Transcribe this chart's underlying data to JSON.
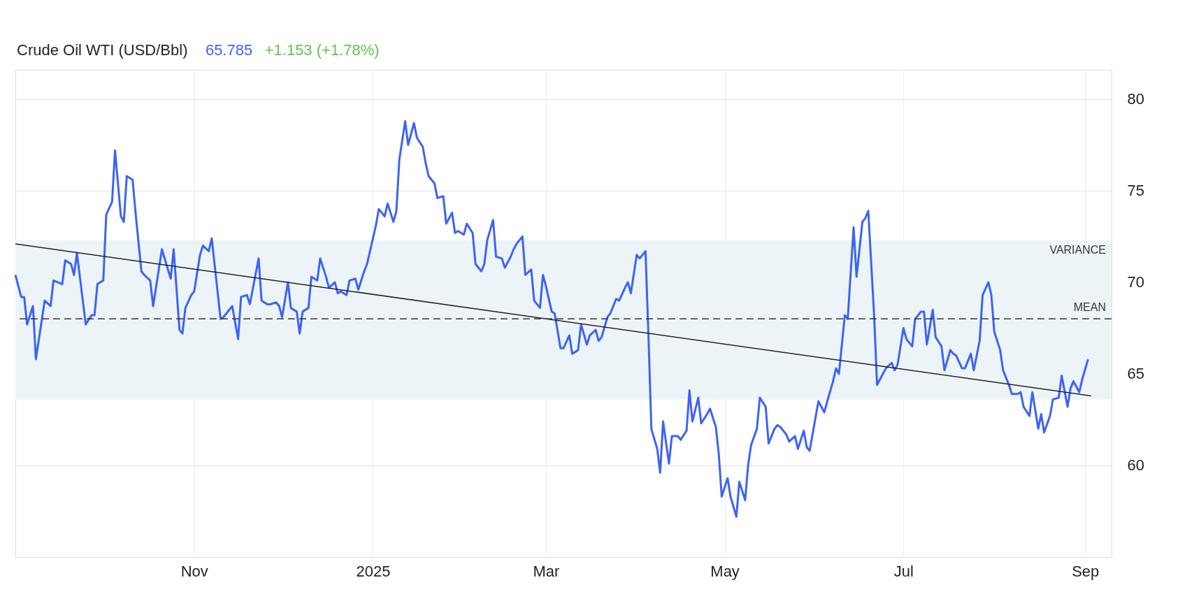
{
  "chart_data": {
    "type": "line",
    "title": "Crude Oil WTI (USD/Bbl)",
    "annotations": [
      "65.785",
      "+1.153 (+1.78%)"
    ],
    "xlim": [
      "2024-09-01",
      "2025-09-10"
    ],
    "xticks": [
      {
        "value": "2024-11-01",
        "label": "Nov"
      },
      {
        "value": "2025-01-01",
        "label": "2025"
      },
      {
        "value": "2025-03-01",
        "label": "Mar"
      },
      {
        "value": "2025-05-01",
        "label": "May"
      },
      {
        "value": "2025-07-01",
        "label": "Jul"
      },
      {
        "value": "2025-09-01",
        "label": "Sep"
      }
    ],
    "ylim": [
      55,
      81.6
    ],
    "yticks": [
      60,
      65,
      70,
      75,
      80
    ],
    "grid": true,
    "marker": "none",
    "line_style": "solid",
    "ref_lines": [
      {
        "axis": "y",
        "value": 68.0,
        "label": "MEAN",
        "color": "#333333",
        "line_style": "dashed"
      }
    ],
    "bands": [
      {
        "axis": "y",
        "from": 63.6,
        "to": 72.3,
        "label": "VARIANCE",
        "color": "#edf4f8"
      }
    ],
    "series": [
      {
        "color": "#3d63f5",
        "x": [
          "2024-09-01",
          "2024-09-03",
          "2024-09-04",
          "2024-09-05",
          "2024-09-07",
          "2024-09-08",
          "2024-09-11",
          "2024-09-13",
          "2024-09-14",
          "2024-09-17",
          "2024-09-18",
          "2024-09-20",
          "2024-09-21",
          "2024-09-22",
          "2024-09-25",
          "2024-09-27",
          "2024-09-28",
          "2024-09-29",
          "2024-10-01",
          "2024-10-02",
          "2024-10-04",
          "2024-10-05",
          "2024-10-07",
          "2024-10-08",
          "2024-10-09",
          "2024-10-11",
          "2024-10-12",
          "2024-10-14",
          "2024-10-15",
          "2024-10-17",
          "2024-10-18",
          "2024-10-21",
          "2024-10-24",
          "2024-10-25",
          "2024-10-27",
          "2024-10-28",
          "2024-10-29",
          "2024-10-31",
          "2024-11-01",
          "2024-11-03",
          "2024-11-04",
          "2024-11-06",
          "2024-11-07",
          "2024-11-10",
          "2024-11-11",
          "2024-11-14",
          "2024-11-16",
          "2024-11-17",
          "2024-11-19",
          "2024-11-20",
          "2024-11-23",
          "2024-11-24",
          "2024-11-26",
          "2024-11-27",
          "2024-11-29",
          "2024-11-30",
          "2024-12-01",
          "2024-12-03",
          "2024-12-04",
          "2024-12-06",
          "2024-12-07",
          "2024-12-08",
          "2024-12-10",
          "2024-12-11",
          "2024-12-13",
          "2024-12-14",
          "2024-12-16",
          "2024-12-17",
          "2024-12-19",
          "2024-12-20",
          "2024-12-21",
          "2024-12-23",
          "2024-12-24",
          "2024-12-26",
          "2024-12-27",
          "2024-12-29",
          "2024-12-30",
          "2024-12-31",
          "2025-01-02",
          "2025-01-03",
          "2025-01-05",
          "2025-01-06",
          "2025-01-08",
          "2025-01-09",
          "2025-01-10",
          "2025-01-12",
          "2025-01-13",
          "2025-01-15",
          "2025-01-16",
          "2025-01-18",
          "2025-01-19",
          "2025-01-20",
          "2025-01-22",
          "2025-01-23",
          "2025-01-25",
          "2025-01-26",
          "2025-01-28",
          "2025-01-29",
          "2025-01-30",
          "2025-02-01",
          "2025-02-02",
          "2025-02-04",
          "2025-02-05",
          "2025-02-07",
          "2025-02-08",
          "2025-02-09",
          "2025-02-11",
          "2025-02-12",
          "2025-02-14",
          "2025-02-15",
          "2025-02-17",
          "2025-02-18",
          "2025-02-19",
          "2025-02-21",
          "2025-02-22",
          "2025-02-24",
          "2025-02-25",
          "2025-02-27",
          "2025-02-28",
          "2025-03-01",
          "2025-03-03",
          "2025-03-04",
          "2025-03-06",
          "2025-03-07",
          "2025-03-09",
          "2025-03-10",
          "2025-03-12",
          "2025-03-13",
          "2025-03-15",
          "2025-03-16",
          "2025-03-18",
          "2025-03-19",
          "2025-03-20",
          "2025-03-22",
          "2025-03-23",
          "2025-03-25",
          "2025-03-26",
          "2025-03-28",
          "2025-03-29",
          "2025-03-30",
          "2025-04-01",
          "2025-04-02",
          "2025-04-04",
          "2025-04-05",
          "2025-04-06",
          "2025-04-08",
          "2025-04-09",
          "2025-04-10",
          "2025-04-12",
          "2025-04-13",
          "2025-04-15",
          "2025-04-16",
          "2025-04-18",
          "2025-04-19",
          "2025-04-20",
          "2025-04-22",
          "2025-04-23",
          "2025-04-25",
          "2025-04-26",
          "2025-04-28",
          "2025-04-29",
          "2025-04-30",
          "2025-05-02",
          "2025-05-03",
          "2025-05-05",
          "2025-05-06",
          "2025-05-08",
          "2025-05-09",
          "2025-05-10",
          "2025-05-12",
          "2025-05-13",
          "2025-05-15",
          "2025-05-16",
          "2025-05-18",
          "2025-05-19",
          "2025-05-20",
          "2025-05-22",
          "2025-05-23",
          "2025-05-25",
          "2025-05-26",
          "2025-05-28",
          "2025-05-29",
          "2025-05-30",
          "2025-06-01",
          "2025-06-02",
          "2025-06-04",
          "2025-06-05",
          "2025-06-07",
          "2025-06-08",
          "2025-06-09",
          "2025-06-11",
          "2025-06-12",
          "2025-06-14",
          "2025-06-15",
          "2025-06-17",
          "2025-06-18",
          "2025-06-19",
          "2025-06-21",
          "2025-06-22",
          "2025-06-24",
          "2025-06-25",
          "2025-06-27",
          "2025-06-28",
          "2025-06-29",
          "2025-07-01",
          "2025-07-02",
          "2025-07-04",
          "2025-07-05",
          "2025-07-07",
          "2025-07-08",
          "2025-07-09",
          "2025-07-11",
          "2025-07-12",
          "2025-07-14",
          "2025-07-15",
          "2025-07-17",
          "2025-07-18",
          "2025-07-19",
          "2025-07-21",
          "2025-07-22",
          "2025-07-24",
          "2025-07-25",
          "2025-07-27",
          "2025-07-28",
          "2025-07-30",
          "2025-07-31",
          "2025-08-01",
          "2025-08-03",
          "2025-08-04",
          "2025-08-06",
          "2025-08-07",
          "2025-08-09",
          "2025-08-10",
          "2025-08-11",
          "2025-08-13",
          "2025-08-14",
          "2025-08-16",
          "2025-08-17",
          "2025-08-18",
          "2025-08-20",
          "2025-08-21",
          "2025-08-23",
          "2025-08-24",
          "2025-08-26",
          "2025-08-27",
          "2025-08-28",
          "2025-08-30",
          "2025-08-31",
          "2025-09-02"
        ],
        "values": [
          70.4,
          69.2,
          69.2,
          67.7,
          68.7,
          65.8,
          69.0,
          68.7,
          70.1,
          69.9,
          71.2,
          71.0,
          70.4,
          71.6,
          67.7,
          68.2,
          68.2,
          69.9,
          70.1,
          73.7,
          74.4,
          77.2,
          73.6,
          73.3,
          75.8,
          75.6,
          73.8,
          70.6,
          70.4,
          70.1,
          68.7,
          71.8,
          70.2,
          71.8,
          67.4,
          67.2,
          68.6,
          69.3,
          69.5,
          71.5,
          72.0,
          71.7,
          72.4,
          68.0,
          68.1,
          68.7,
          66.9,
          69.2,
          69.3,
          68.8,
          71.3,
          69.0,
          68.8,
          68.8,
          68.9,
          68.7,
          68.1,
          70.0,
          68.6,
          68.4,
          67.2,
          68.4,
          68.6,
          70.3,
          70.1,
          71.3,
          70.3,
          69.7,
          70.0,
          69.4,
          69.5,
          69.3,
          70.1,
          70.2,
          69.6,
          70.6,
          71.0,
          71.7,
          73.1,
          74.0,
          73.6,
          74.3,
          73.3,
          73.9,
          76.7,
          78.8,
          77.5,
          78.7,
          77.9,
          77.4,
          76.5,
          75.8,
          75.4,
          74.6,
          74.7,
          73.2,
          73.8,
          72.7,
          72.8,
          72.6,
          73.2,
          72.7,
          71.0,
          70.6,
          71.0,
          72.3,
          73.4,
          71.4,
          71.3,
          70.8,
          71.4,
          71.8,
          72.1,
          72.5,
          70.4,
          70.7,
          69.0,
          68.6,
          70.4,
          69.8,
          68.4,
          68.3,
          66.4,
          66.4,
          67.1,
          66.1,
          66.3,
          67.7,
          66.6,
          67.1,
          67.4,
          66.8,
          67.0,
          68.1,
          68.3,
          69.1,
          69.0,
          69.7,
          70.0,
          69.4,
          71.5,
          71.3,
          71.7,
          67.1,
          62.0,
          60.9,
          59.6,
          62.4,
          60.1,
          61.6,
          61.6,
          61.4,
          61.9,
          64.1,
          62.4,
          63.7,
          62.3,
          62.8,
          63.1,
          62.1,
          60.6,
          58.3,
          59.3,
          58.3,
          57.2,
          59.1,
          58.1,
          60.0,
          61.1,
          62.0,
          63.7,
          63.2,
          61.2,
          62.0,
          62.2,
          62.1,
          61.7,
          61.3,
          61.6,
          60.9,
          61.9,
          61.0,
          60.8,
          62.6,
          63.5,
          62.9,
          63.5,
          64.6,
          65.3,
          65.0,
          68.2,
          68.0,
          73.0,
          70.3,
          73.3,
          73.5,
          73.9,
          68.2,
          64.4,
          65.0,
          65.3,
          65.6,
          65.2,
          65.5,
          67.5,
          66.9,
          66.5,
          68.0,
          68.4,
          68.4,
          66.6,
          68.5,
          67.0,
          66.5,
          65.2,
          66.3,
          66.1,
          66.0,
          65.3,
          65.3,
          66.1,
          65.2,
          66.8,
          69.3,
          70.0,
          69.3,
          67.3,
          66.3,
          65.2,
          64.4,
          63.9,
          63.9,
          64.0,
          63.2,
          62.7,
          64.0,
          62.0,
          62.8,
          61.8,
          62.7,
          63.6,
          63.7,
          64.9,
          63.2,
          64.2,
          64.6,
          64.0,
          64.7,
          65.8
        ]
      },
      {
        "type": "line",
        "color": "#222222",
        "x": [
          "2024-09-01",
          "2025-09-03"
        ],
        "values": [
          72.1,
          63.8
        ]
      }
    ]
  }
}
